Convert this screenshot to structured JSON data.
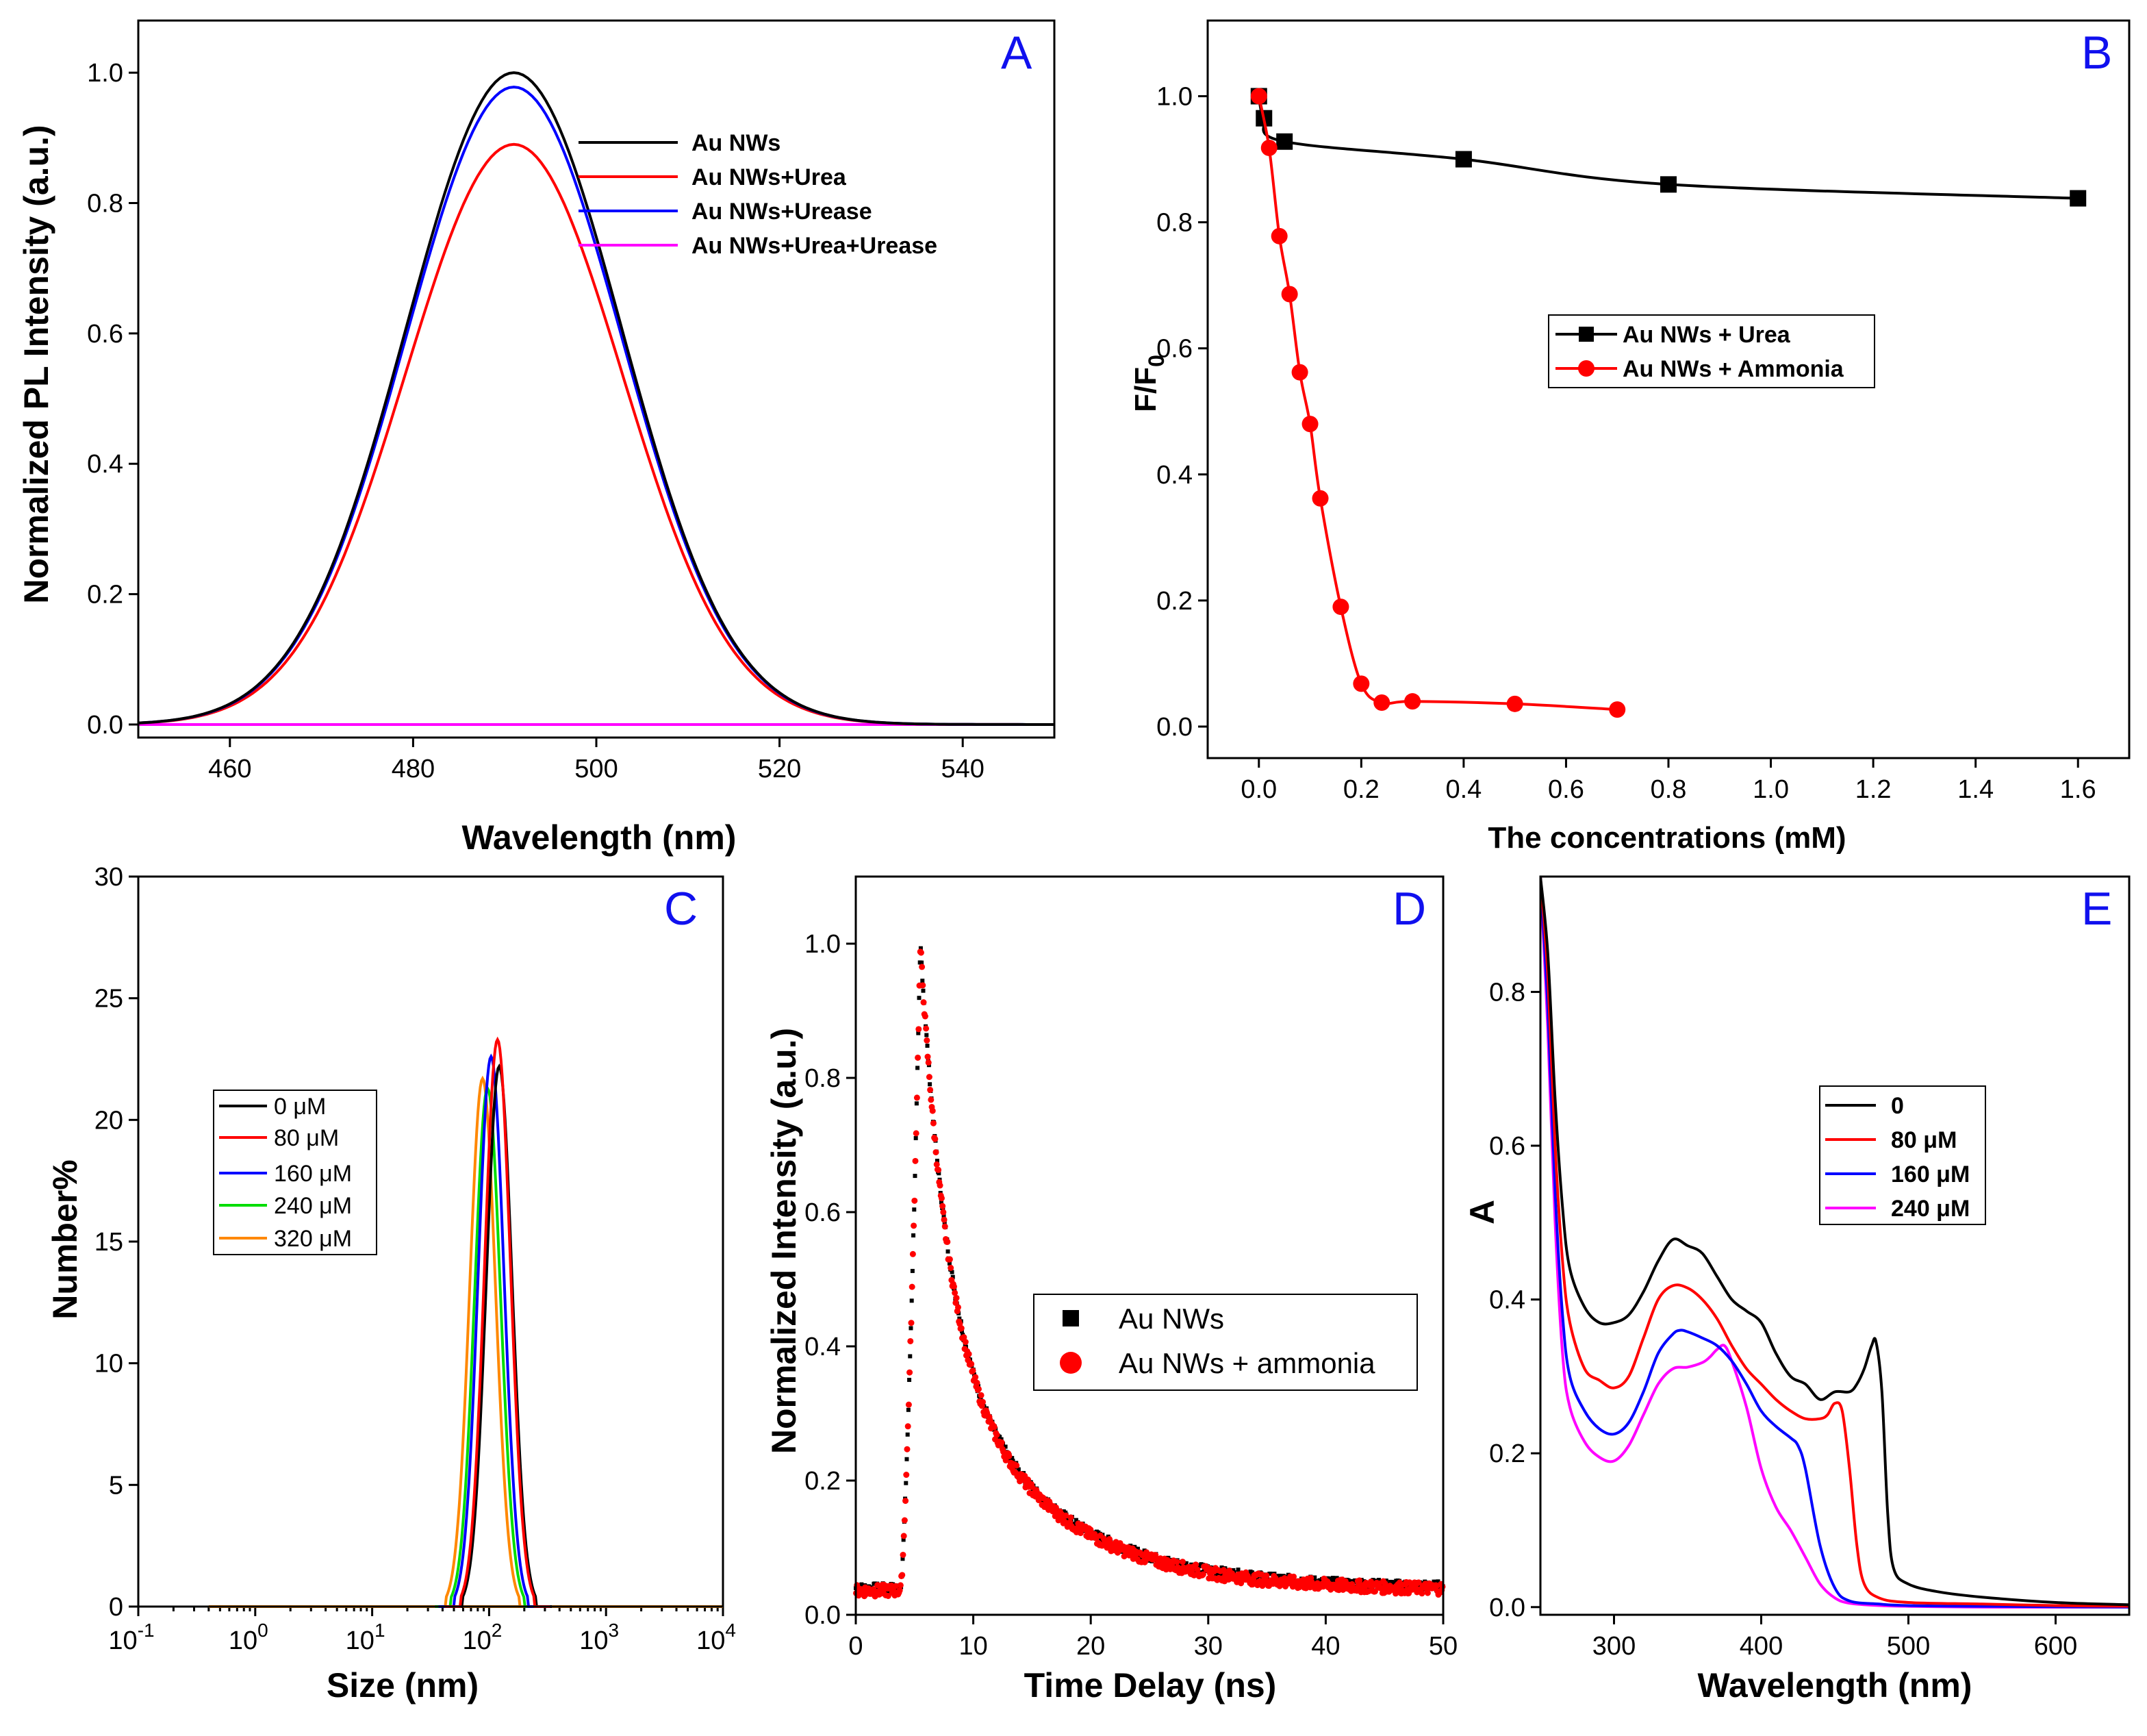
{
  "chart_data": [
    {
      "panel": "A",
      "type": "line",
      "xlabel": "Wavelength (nm)",
      "ylabel": "Normalized PL Intensity (a.u.)",
      "xlim": [
        450,
        550
      ],
      "ylim": [
        -0.02,
        1.08
      ],
      "xticks": [
        460,
        480,
        500,
        520,
        540
      ],
      "yticks": [
        0.0,
        0.2,
        0.4,
        0.6,
        0.8,
        1.0
      ],
      "legend_position": "top-right",
      "series": [
        {
          "name": "Au NWs",
          "color": "#000000",
          "peak": 1.0,
          "center": 491,
          "width": 11.8
        },
        {
          "name": "Au NWs+Urea",
          "color": "#ff0000",
          "peak": 0.89,
          "center": 491,
          "width": 11.8
        },
        {
          "name": "Au NWs+Urease",
          "color": "#0000ff",
          "peak": 0.978,
          "center": 491,
          "width": 11.8
        },
        {
          "name": "Au NWs+Urea+Urease",
          "color": "#ff00ff",
          "peak": 0.0,
          "center": 491,
          "width": 11.8
        }
      ]
    },
    {
      "panel": "B",
      "type": "scatter-line",
      "xlabel": "The concentrations (mM)",
      "ylabel": "F/F0",
      "xlim": [
        -0.1,
        1.7
      ],
      "ylim": [
        -0.05,
        1.12
      ],
      "xticks": [
        0.0,
        0.2,
        0.4,
        0.6,
        0.8,
        1.0,
        1.2,
        1.4,
        1.6
      ],
      "yticks": [
        0.0,
        0.2,
        0.4,
        0.6,
        0.8,
        1.0
      ],
      "legend_position": "center-right",
      "series": [
        {
          "name": "Au NWs + Urea",
          "color": "#000000",
          "marker": "square",
          "x": [
            0,
            0.01,
            0.05,
            0.4,
            0.8,
            1.6
          ],
          "y": [
            1.0,
            0.965,
            0.928,
            0.9,
            0.86,
            0.838
          ]
        },
        {
          "name": "Au NWs + Ammonia",
          "color": "#ff0000",
          "marker": "circle",
          "x": [
            0,
            0.02,
            0.04,
            0.06,
            0.08,
            0.1,
            0.12,
            0.16,
            0.2,
            0.24,
            0.3,
            0.5,
            0.7
          ],
          "y": [
            1.0,
            0.918,
            0.778,
            0.686,
            0.562,
            0.48,
            0.362,
            0.19,
            0.068,
            0.038,
            0.04,
            0.036,
            0.027
          ]
        }
      ]
    },
    {
      "panel": "C",
      "type": "line",
      "xlabel": "Size (nm)",
      "ylabel": "Number%",
      "xscale": "log",
      "xlim_log10": [
        -1,
        4
      ],
      "ylim": [
        0,
        30
      ],
      "xticks_base": "10",
      "xticks_exp": [
        "-1",
        "0",
        "1",
        "2",
        "3",
        "4"
      ],
      "yticks": [
        0,
        5,
        10,
        15,
        20,
        25,
        30
      ],
      "legend_position": "center-left",
      "series": [
        {
          "name": "0  μM",
          "color": "#000000",
          "peak": 22.2,
          "center": 122
        },
        {
          "name": "80 μM",
          "color": "#ff0000",
          "peak": 23.3,
          "center": 118
        },
        {
          "name": "160 μM",
          "color": "#0000ff",
          "peak": 22.6,
          "center": 104
        },
        {
          "name": "240 μM",
          "color": "#00dd00",
          "peak": 21.3,
          "center": 97
        },
        {
          "name": "320 μM",
          "color": "#ff8800",
          "peak": 21.7,
          "center": 88
        }
      ]
    },
    {
      "panel": "D",
      "type": "scatter",
      "xlabel": "Time Delay (ns)",
      "ylabel": "Normalized Intensity (a.u.)",
      "xlim": [
        0,
        50
      ],
      "ylim": [
        0,
        1.1
      ],
      "xticks": [
        0,
        10,
        20,
        30,
        40,
        50
      ],
      "yticks": [
        0.0,
        0.2,
        0.4,
        0.6,
        0.8,
        1.0
      ],
      "legend_position": "center-right",
      "baseline": 0.04,
      "rise_start": 3.8,
      "peak_time": 5.5,
      "peak": 1.0,
      "decay_fast_amp": 0.55,
      "decay_fast_tau": 2.2,
      "decay_slow_amp": 0.41,
      "decay_slow_tau": 9.0,
      "series": [
        {
          "name": "Au NWs",
          "color": "#000000",
          "marker": "square"
        },
        {
          "name": "Au NWs + ammonia",
          "color": "#ff0000",
          "marker": "circle"
        }
      ]
    },
    {
      "panel": "E",
      "type": "line",
      "xlabel": "Wavelength (nm)",
      "ylabel": "A",
      "xlim": [
        250,
        650
      ],
      "ylim": [
        -0.01,
        0.95
      ],
      "xticks": [
        300,
        400,
        500,
        600
      ],
      "yticks": [
        0.0,
        0.2,
        0.4,
        0.6,
        0.8
      ],
      "legend_position": "center-right",
      "series": [
        {
          "name": "0",
          "color": "#000000",
          "x": [
            250,
            255,
            260,
            265,
            270,
            280,
            290,
            300,
            310,
            320,
            330,
            340,
            350,
            360,
            370,
            380,
            390,
            400,
            410,
            420,
            430,
            440,
            450,
            460,
            465,
            470,
            475,
            478,
            482,
            486,
            490,
            500,
            520,
            550,
            600,
            650
          ],
          "y": [
            0.95,
            0.85,
            0.66,
            0.52,
            0.44,
            0.39,
            0.37,
            0.37,
            0.38,
            0.41,
            0.45,
            0.478,
            0.47,
            0.46,
            0.43,
            0.4,
            0.385,
            0.37,
            0.33,
            0.3,
            0.29,
            0.27,
            0.28,
            0.28,
            0.29,
            0.31,
            0.34,
            0.345,
            0.28,
            0.12,
            0.05,
            0.03,
            0.02,
            0.013,
            0.006,
            0.003
          ]
        },
        {
          "name": "80 μM",
          "color": "#ff0000",
          "x": [
            250,
            255,
            260,
            265,
            270,
            280,
            290,
            300,
            310,
            320,
            330,
            340,
            350,
            360,
            370,
            380,
            390,
            400,
            410,
            420,
            430,
            440,
            445,
            450,
            455,
            460,
            465,
            470,
            480,
            500,
            550,
            600,
            650
          ],
          "y": [
            0.95,
            0.82,
            0.6,
            0.45,
            0.37,
            0.31,
            0.295,
            0.285,
            0.3,
            0.35,
            0.4,
            0.418,
            0.415,
            0.4,
            0.375,
            0.34,
            0.31,
            0.29,
            0.27,
            0.255,
            0.245,
            0.245,
            0.25,
            0.265,
            0.255,
            0.18,
            0.08,
            0.03,
            0.012,
            0.006,
            0.004,
            0.002,
            0.001
          ]
        },
        {
          "name": "160 μM",
          "color": "#0000ff",
          "x": [
            250,
            255,
            260,
            265,
            270,
            280,
            290,
            300,
            310,
            320,
            330,
            340,
            345,
            350,
            360,
            370,
            380,
            390,
            400,
            410,
            420,
            425,
            430,
            440,
            450,
            460,
            480,
            500,
            550,
            650
          ],
          "y": [
            0.95,
            0.78,
            0.54,
            0.38,
            0.3,
            0.255,
            0.232,
            0.225,
            0.24,
            0.28,
            0.33,
            0.355,
            0.36,
            0.358,
            0.35,
            0.34,
            0.32,
            0.29,
            0.255,
            0.235,
            0.22,
            0.21,
            0.18,
            0.08,
            0.025,
            0.008,
            0.004,
            0.002,
            0.001,
            0.0
          ]
        },
        {
          "name": "240 μM",
          "color": "#ff00ff",
          "x": [
            250,
            255,
            260,
            265,
            270,
            280,
            290,
            300,
            310,
            320,
            330,
            340,
            350,
            360,
            365,
            370,
            375,
            380,
            390,
            400,
            410,
            420,
            430,
            440,
            450,
            460,
            480,
            500,
            550,
            650
          ],
          "y": [
            0.95,
            0.75,
            0.5,
            0.33,
            0.26,
            0.215,
            0.195,
            0.19,
            0.21,
            0.25,
            0.29,
            0.31,
            0.312,
            0.318,
            0.325,
            0.335,
            0.34,
            0.32,
            0.26,
            0.18,
            0.13,
            0.1,
            0.065,
            0.03,
            0.012,
            0.005,
            0.002,
            0.001,
            0.0,
            0.0
          ]
        }
      ]
    }
  ],
  "colors": {
    "panel_letter": "#1010ee"
  }
}
